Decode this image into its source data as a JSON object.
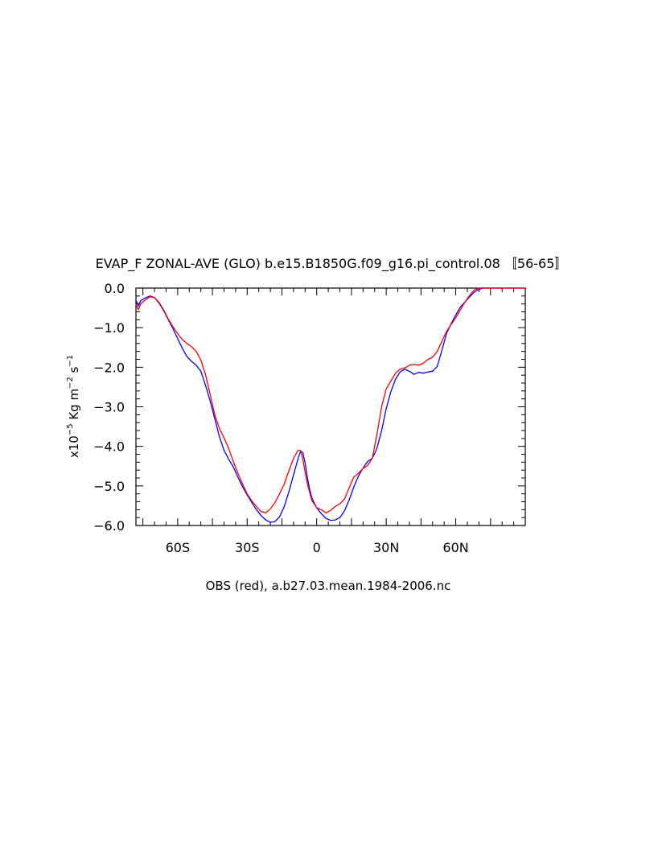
{
  "chart_data": {
    "type": "line",
    "title": "EVAP_F ZONAL-AVE (GLO) b.e15.B1850G.f09_g16.pi_control.08 〚56-65〛",
    "xlabel": "OBS (red), a.b27.03.mean.1984-2006.nc",
    "ylabel": {
      "prefix": "x10",
      "exp": "−5",
      "unit_a": " Kg m",
      "exp_a": "−2",
      "unit_b": " s",
      "exp_b": "−1"
    },
    "xlim": [
      -78,
      90
    ],
    "ylim": [
      -6.0,
      0.0
    ],
    "x_ticks": [
      {
        "value": -60,
        "label": "60S"
      },
      {
        "value": -30,
        "label": "30S"
      },
      {
        "value": 0,
        "label": "0"
      },
      {
        "value": 30,
        "label": "30N"
      },
      {
        "value": 60,
        "label": "60N"
      }
    ],
    "y_ticks": [
      {
        "value": 0,
        "label": "0.0"
      },
      {
        "value": -1,
        "label": "−1.0"
      },
      {
        "value": -2,
        "label": "−2.0"
      },
      {
        "value": -3,
        "label": "−3.0"
      },
      {
        "value": -4,
        "label": "−4.0"
      },
      {
        "value": -5,
        "label": "−5.0"
      },
      {
        "value": -6,
        "label": "−6.0"
      }
    ],
    "grid": false,
    "series": [
      {
        "color": "#0000ff",
        "points": [
          [
            -78,
            -0.3
          ],
          [
            -77,
            -0.45
          ],
          [
            -76,
            -0.32
          ],
          [
            -74,
            -0.25
          ],
          [
            -72,
            -0.2
          ],
          [
            -70,
            -0.24
          ],
          [
            -68,
            -0.38
          ],
          [
            -66,
            -0.58
          ],
          [
            -64,
            -0.8
          ],
          [
            -62,
            -1.03
          ],
          [
            -60,
            -1.28
          ],
          [
            -58,
            -1.52
          ],
          [
            -56,
            -1.73
          ],
          [
            -54,
            -1.85
          ],
          [
            -52,
            -1.95
          ],
          [
            -50,
            -2.1
          ],
          [
            -48,
            -2.45
          ],
          [
            -46,
            -2.85
          ],
          [
            -44,
            -3.3
          ],
          [
            -42,
            -3.75
          ],
          [
            -40,
            -4.1
          ],
          [
            -38,
            -4.32
          ],
          [
            -36,
            -4.52
          ],
          [
            -34,
            -4.78
          ],
          [
            -32,
            -5.02
          ],
          [
            -30,
            -5.23
          ],
          [
            -28,
            -5.42
          ],
          [
            -26,
            -5.6
          ],
          [
            -24,
            -5.75
          ],
          [
            -22,
            -5.86
          ],
          [
            -20,
            -5.92
          ],
          [
            -18,
            -5.9
          ],
          [
            -16,
            -5.78
          ],
          [
            -14,
            -5.52
          ],
          [
            -12,
            -5.15
          ],
          [
            -10,
            -4.72
          ],
          [
            -8,
            -4.3
          ],
          [
            -7,
            -4.13
          ],
          [
            -6,
            -4.15
          ],
          [
            -5,
            -4.42
          ],
          [
            -4,
            -4.8
          ],
          [
            -3,
            -5.1
          ],
          [
            -2,
            -5.32
          ],
          [
            0,
            -5.55
          ],
          [
            2,
            -5.7
          ],
          [
            4,
            -5.82
          ],
          [
            6,
            -5.87
          ],
          [
            8,
            -5.86
          ],
          [
            10,
            -5.8
          ],
          [
            12,
            -5.63
          ],
          [
            14,
            -5.36
          ],
          [
            16,
            -5.03
          ],
          [
            18,
            -4.75
          ],
          [
            20,
            -4.55
          ],
          [
            22,
            -4.38
          ],
          [
            24,
            -4.3
          ],
          [
            26,
            -4.05
          ],
          [
            28,
            -3.6
          ],
          [
            30,
            -3.05
          ],
          [
            32,
            -2.62
          ],
          [
            34,
            -2.3
          ],
          [
            36,
            -2.12
          ],
          [
            38,
            -2.05
          ],
          [
            40,
            -2.1
          ],
          [
            42,
            -2.18
          ],
          [
            44,
            -2.13
          ],
          [
            46,
            -2.15
          ],
          [
            48,
            -2.12
          ],
          [
            50,
            -2.1
          ],
          [
            52,
            -1.98
          ],
          [
            54,
            -1.58
          ],
          [
            56,
            -1.15
          ],
          [
            58,
            -0.9
          ],
          [
            60,
            -0.68
          ],
          [
            62,
            -0.48
          ],
          [
            64,
            -0.35
          ],
          [
            66,
            -0.22
          ],
          [
            68,
            -0.1
          ],
          [
            70,
            -0.03
          ],
          [
            72,
            0.0
          ],
          [
            90,
            0.0
          ]
        ]
      },
      {
        "color": "#ff0000",
        "points": [
          [
            -78,
            -0.4
          ],
          [
            -77,
            -0.55
          ],
          [
            -76,
            -0.4
          ],
          [
            -74,
            -0.3
          ],
          [
            -72,
            -0.22
          ],
          [
            -70,
            -0.24
          ],
          [
            -68,
            -0.36
          ],
          [
            -66,
            -0.56
          ],
          [
            -64,
            -0.78
          ],
          [
            -62,
            -0.98
          ],
          [
            -60,
            -1.15
          ],
          [
            -58,
            -1.3
          ],
          [
            -56,
            -1.4
          ],
          [
            -54,
            -1.48
          ],
          [
            -52,
            -1.6
          ],
          [
            -50,
            -1.82
          ],
          [
            -48,
            -2.18
          ],
          [
            -46,
            -2.68
          ],
          [
            -44,
            -3.2
          ],
          [
            -42,
            -3.55
          ],
          [
            -40,
            -3.78
          ],
          [
            -38,
            -4.05
          ],
          [
            -36,
            -4.38
          ],
          [
            -34,
            -4.68
          ],
          [
            -32,
            -4.95
          ],
          [
            -30,
            -5.2
          ],
          [
            -28,
            -5.38
          ],
          [
            -26,
            -5.52
          ],
          [
            -24,
            -5.65
          ],
          [
            -22,
            -5.68
          ],
          [
            -20,
            -5.58
          ],
          [
            -18,
            -5.42
          ],
          [
            -16,
            -5.2
          ],
          [
            -14,
            -4.95
          ],
          [
            -12,
            -4.62
          ],
          [
            -10,
            -4.3
          ],
          [
            -8,
            -4.1
          ],
          [
            -7,
            -4.1
          ],
          [
            -6,
            -4.32
          ],
          [
            -5,
            -4.65
          ],
          [
            -4,
            -4.95
          ],
          [
            -3,
            -5.18
          ],
          [
            -2,
            -5.38
          ],
          [
            0,
            -5.55
          ],
          [
            2,
            -5.6
          ],
          [
            4,
            -5.68
          ],
          [
            6,
            -5.62
          ],
          [
            8,
            -5.52
          ],
          [
            10,
            -5.45
          ],
          [
            12,
            -5.33
          ],
          [
            14,
            -5.05
          ],
          [
            16,
            -4.78
          ],
          [
            18,
            -4.68
          ],
          [
            20,
            -4.56
          ],
          [
            22,
            -4.48
          ],
          [
            24,
            -4.3
          ],
          [
            26,
            -3.7
          ],
          [
            28,
            -3.0
          ],
          [
            30,
            -2.55
          ],
          [
            32,
            -2.35
          ],
          [
            34,
            -2.15
          ],
          [
            36,
            -2.05
          ],
          [
            38,
            -2.02
          ],
          [
            40,
            -1.95
          ],
          [
            42,
            -1.93
          ],
          [
            44,
            -1.95
          ],
          [
            46,
            -1.9
          ],
          [
            48,
            -1.8
          ],
          [
            50,
            -1.75
          ],
          [
            52,
            -1.6
          ],
          [
            54,
            -1.35
          ],
          [
            56,
            -1.1
          ],
          [
            58,
            -0.92
          ],
          [
            60,
            -0.75
          ],
          [
            62,
            -0.55
          ],
          [
            64,
            -0.35
          ],
          [
            66,
            -0.18
          ],
          [
            68,
            -0.05
          ],
          [
            70,
            0.0
          ],
          [
            90,
            0.0
          ]
        ]
      }
    ]
  }
}
